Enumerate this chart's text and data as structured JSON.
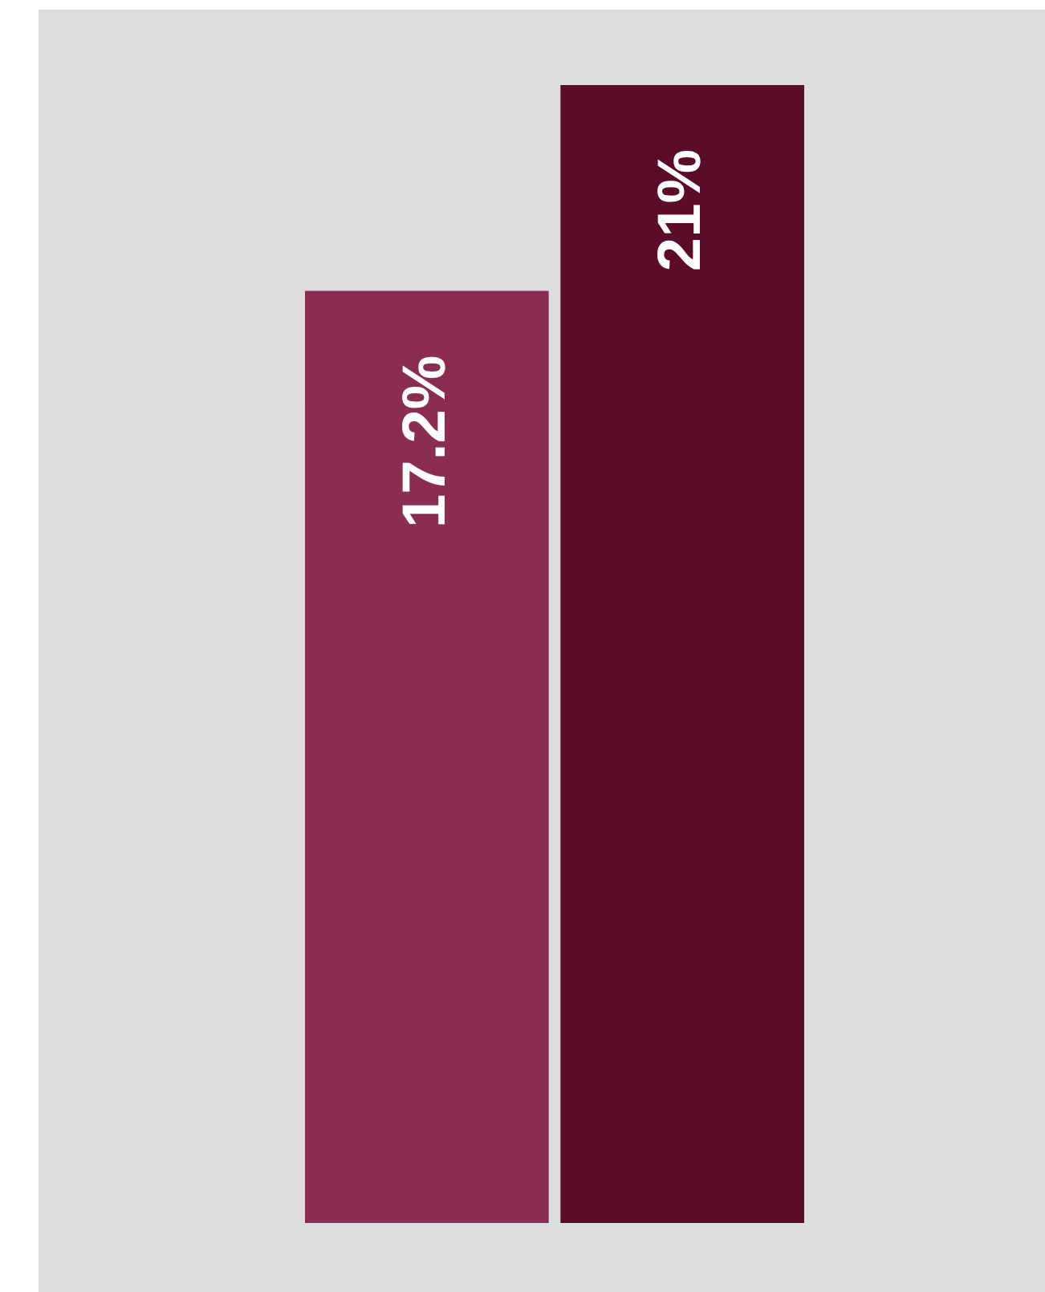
{
  "chart_data": {
    "type": "bar",
    "categories": [
      null,
      null
    ],
    "values": [
      17.2,
      21
    ],
    "colors": [
      "#8a2d50",
      "#5a0c29"
    ],
    "value_labels": [
      "17.2%",
      "21%"
    ]
  }
}
